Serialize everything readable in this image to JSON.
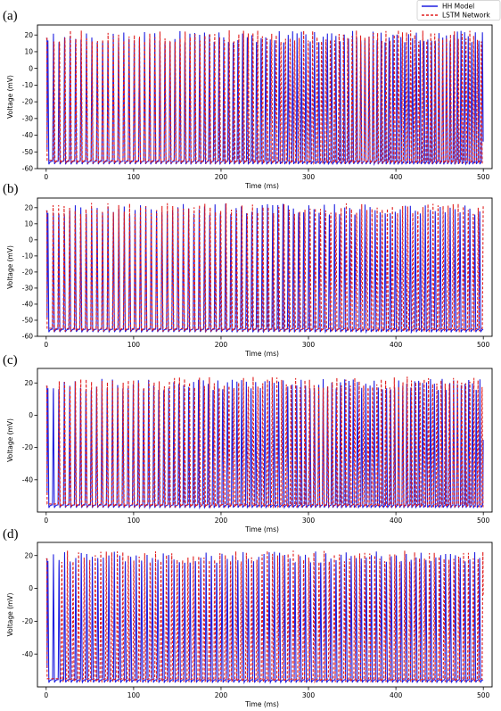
{
  "legend": [
    {
      "label": "HH Model",
      "color": "#1f1fe0",
      "style": "solid"
    },
    {
      "label": "LSTM Network",
      "color": "#e01f1f",
      "style": "dashed"
    }
  ],
  "chart_data": [
    {
      "panel": "(a)",
      "type": "line",
      "xlabel": "Time (ms)",
      "ylabel": "Voltage (mV)",
      "xlim": [
        -10,
        510
      ],
      "ylim": [
        -60,
        26
      ],
      "xticks": [
        0,
        100,
        200,
        300,
        400,
        500
      ],
      "yticks": [
        -60,
        -50,
        -40,
        -30,
        -20,
        -10,
        0,
        10,
        20
      ],
      "series": [
        {
          "name": "HH Model",
          "color": "#1f1fe0",
          "style": "solid",
          "spike_times_ms": {
            "start": 1,
            "end": 500,
            "period_start": 6.4,
            "period_end": 4.0
          },
          "v_rest": -55.5,
          "v_min": -57.5,
          "v_peak": 22.5
        },
        {
          "name": "LSTM Network",
          "color": "#e01f1f",
          "style": "dashed",
          "spike_times_ms": {
            "start": 8,
            "end": 500,
            "period_start": 6.3,
            "period_end": 4.3
          },
          "v_rest": -55.0,
          "v_min": -57.0,
          "v_peak": 23.0
        }
      ]
    },
    {
      "panel": "(b)",
      "type": "line",
      "xlabel": "Time (ms)",
      "ylabel": "Voltage (mV)",
      "xlim": [
        -10,
        510
      ],
      "ylim": [
        -60,
        26
      ],
      "xticks": [
        0,
        100,
        200,
        300,
        400,
        500
      ],
      "yticks": [
        -60,
        -50,
        -40,
        -30,
        -20,
        -10,
        0,
        10,
        20
      ],
      "series": [
        {
          "name": "HH Model",
          "color": "#1f1fe0",
          "style": "solid",
          "spike_times_ms": {
            "start": 1,
            "end": 500,
            "period_start": 6.3,
            "period_end": 5.6
          },
          "v_rest": -55.5,
          "v_min": -57.5,
          "v_peak": 22.5
        },
        {
          "name": "LSTM Network",
          "color": "#e01f1f",
          "style": "dashed",
          "spike_times_ms": {
            "start": 7,
            "end": 500,
            "period_start": 6.3,
            "period_end": 5.7
          },
          "v_rest": -55.0,
          "v_min": -57.0,
          "v_peak": 23.0
        }
      ]
    },
    {
      "panel": "(c)",
      "type": "line",
      "xlabel": "Time (ms)",
      "ylabel": "Voltage (mV)",
      "xlim": [
        -10,
        510
      ],
      "ylim": [
        -60,
        29
      ],
      "xticks": [
        0,
        100,
        200,
        300,
        400,
        500
      ],
      "yticks": [
        -40,
        -20,
        0,
        20
      ],
      "series": [
        {
          "name": "HH Model",
          "color": "#1f1fe0",
          "style": "solid",
          "spike_times_ms": {
            "start": 1,
            "end": 500,
            "period_start": 6.3,
            "period_end": 4.2
          },
          "v_rest": -55.5,
          "v_min": -57.5,
          "v_peak": 22.5
        },
        {
          "name": "LSTM Network",
          "color": "#e01f1f",
          "style": "dashed",
          "spike_times_ms": {
            "start": 14,
            "end": 500,
            "period_start": 6.2,
            "period_end": 4.6
          },
          "v_rest": -55.0,
          "v_min": -57.0,
          "v_peak": 24.0
        }
      ]
    },
    {
      "panel": "(d)",
      "type": "line",
      "xlabel": "Time (ms)",
      "ylabel": "Voltage (mV)",
      "xlim": [
        -10,
        510
      ],
      "ylim": [
        -60,
        28
      ],
      "xticks": [
        0,
        100,
        200,
        300,
        400,
        500
      ],
      "yticks": [
        -40,
        -20,
        0,
        20
      ],
      "series": [
        {
          "name": "HH Model",
          "color": "#1f1fe0",
          "style": "solid",
          "spike_times_ms": {
            "start": 1,
            "end": 500,
            "period_start": 6.4,
            "period_end": 5.5
          },
          "v_rest": -55.5,
          "v_min": -57.5,
          "v_peak": 22.5
        },
        {
          "name": "LSTM Network",
          "color": "#e01f1f",
          "style": "dashed",
          "spike_times_ms": {
            "start": 17,
            "end": 500,
            "period_start": 6.4,
            "period_end": 5.5
          },
          "v_rest": -55.0,
          "v_min": -57.0,
          "v_peak": 23.0
        }
      ]
    }
  ]
}
